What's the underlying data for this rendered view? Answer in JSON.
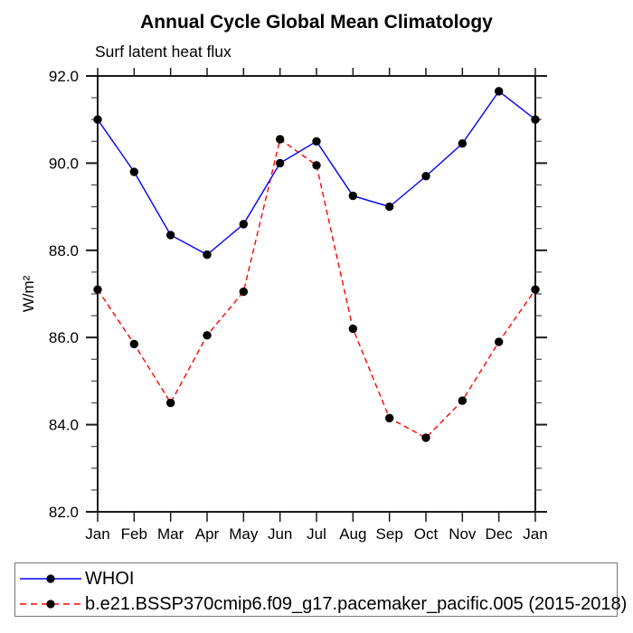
{
  "title": "Annual Cycle Global Mean Climatology",
  "subtitle": "Surf latent heat flux",
  "y_axis_label": "W/m²",
  "colors": {
    "axis": "#1a1a1a",
    "minor_tick": "#4a4a4a",
    "text": "#000000",
    "legend_border": "#777777"
  },
  "chart_data": {
    "type": "line",
    "title": "Annual Cycle Global Mean Climatology",
    "subtitle": "Surf latent heat flux",
    "ylabel": "W/m²",
    "categories": [
      "Jan",
      "Feb",
      "Mar",
      "Apr",
      "May",
      "Jun",
      "Jul",
      "Aug",
      "Sep",
      "Oct",
      "Nov",
      "Dec",
      "Jan"
    ],
    "ylim": [
      82.0,
      92.0
    ],
    "ytick_major_interval": 2.0,
    "ytick_minor_interval": 0.5,
    "ytick_labels": [
      "82.0",
      "84.0",
      "86.0",
      "88.0",
      "90.0",
      "92.0"
    ],
    "grid": false,
    "legend_position": "bottom",
    "series": [
      {
        "name": "WHOI",
        "color": "#0000ff",
        "line_style": "solid",
        "marker": "filled-circle",
        "marker_color": "#000000",
        "values": [
          91.0,
          89.8,
          88.35,
          87.9,
          88.6,
          90.0,
          90.5,
          89.25,
          89.0,
          89.7,
          90.45,
          91.65,
          91.0
        ]
      },
      {
        "name": "b.e21.BSSP370cmip6.f09_g17.pacemaker_pacific.005 (2015-2018)",
        "color": "#ff0000",
        "line_style": "dashed",
        "marker": "filled-circle",
        "marker_color": "#000000",
        "values": [
          87.1,
          85.85,
          84.5,
          86.05,
          87.05,
          90.55,
          89.95,
          86.2,
          84.15,
          83.7,
          84.55,
          85.9,
          87.1
        ]
      }
    ]
  }
}
